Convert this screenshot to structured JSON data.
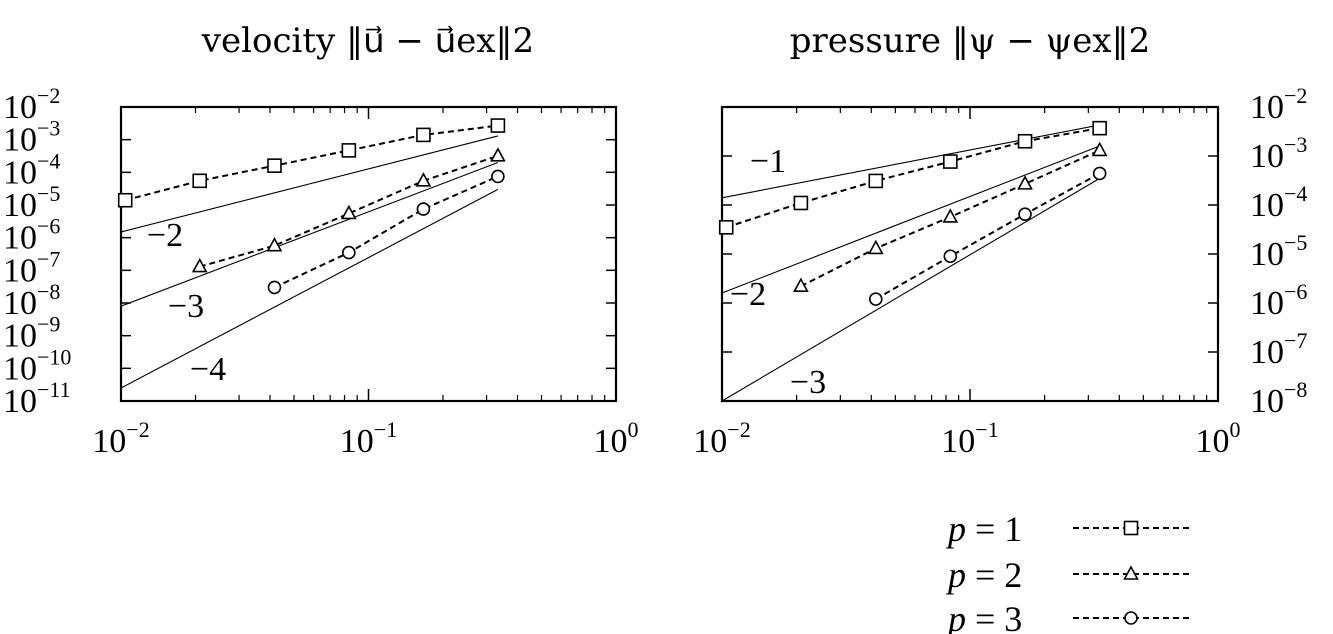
{
  "chart_data": [
    {
      "type": "line",
      "title": "velocity ‖u⃗ − u⃗ex‖2",
      "xscale": "log",
      "yscale": "log",
      "xlim": [
        0.01,
        1
      ],
      "ylim": [
        1e-11,
        0.01
      ],
      "x_ticks": [
        "10−2",
        "10−1",
        "100"
      ],
      "y_ticks": [
        "10−2",
        "10−3",
        "10−4",
        "10−5",
        "10−6",
        "10−7",
        "10−8",
        "10−9",
        "10−10",
        "10−11"
      ],
      "y_axis_side": "left",
      "series": [
        {
          "name": "p = 1",
          "marker": "square",
          "x": [
            0.0104,
            0.0208,
            0.0417,
            0.0833,
            0.1667,
            0.3333
          ],
          "y": [
            1.4e-05,
            5.5e-05,
            0.00016,
            0.00047,
            0.0014,
            0.0027
          ]
        },
        {
          "name": "p = 2",
          "marker": "triangle",
          "x": [
            0.0208,
            0.0417,
            0.0833,
            0.1667,
            0.3333
          ],
          "y": [
            1.3e-07,
            5.7e-07,
            5.5e-06,
            5.5e-05,
            0.00032
          ]
        },
        {
          "name": "p = 3",
          "marker": "circle",
          "x": [
            0.0417,
            0.0833,
            0.1667,
            0.3333
          ],
          "y": [
            3e-08,
            3.5e-07,
            7.5e-06,
            7.5e-05
          ]
        }
      ],
      "reference_lines": [
        {
          "label": "−2",
          "x": [
            0.01,
            0.3333
          ],
          "y": [
            1.5e-06,
            0.0013
          ]
        },
        {
          "label": "−3",
          "x": [
            0.01,
            0.3333
          ],
          "y": [
            8e-09,
            0.0002
          ]
        },
        {
          "label": "−4",
          "x": [
            0.01,
            0.3333
          ],
          "y": [
            2.5e-11,
            3e-05
          ]
        }
      ]
    },
    {
      "type": "line",
      "title": "pressure ‖ψ − ψex‖2",
      "xscale": "log",
      "yscale": "log",
      "xlim": [
        0.01,
        1
      ],
      "ylim": [
        1e-08,
        0.01
      ],
      "x_ticks": [
        "10−2",
        "10−1",
        "100"
      ],
      "y_ticks": [
        "10−2",
        "10−3",
        "10−4",
        "10−5",
        "10−6",
        "10−7",
        "10−8"
      ],
      "y_axis_side": "right",
      "series": [
        {
          "name": "p = 1",
          "marker": "square",
          "x": [
            0.0104,
            0.0208,
            0.0417,
            0.0833,
            0.1667,
            0.3333
          ],
          "y": [
            3.5e-05,
            0.00011,
            0.00031,
            0.00077,
            0.002,
            0.0037
          ]
        },
        {
          "name": "p = 2",
          "marker": "triangle",
          "x": [
            0.0208,
            0.0417,
            0.0833,
            0.1667,
            0.3333
          ],
          "y": [
            2.2e-06,
            1.3e-05,
            5.7e-05,
            0.00027,
            0.0013
          ]
        },
        {
          "name": "p = 3",
          "marker": "circle",
          "x": [
            0.0417,
            0.0833,
            0.1667,
            0.3333
          ],
          "y": [
            1.2e-06,
            9e-06,
            6.5e-05,
            0.00044
          ]
        }
      ],
      "reference_lines": [
        {
          "label": "−1",
          "x": [
            0.01,
            0.3333
          ],
          "y": [
            0.00014,
            0.0043
          ]
        },
        {
          "label": "−2",
          "x": [
            0.01,
            0.3333
          ],
          "y": [
            1.6e-06,
            0.0016
          ]
        },
        {
          "label": "−3",
          "x": [
            0.01,
            0.3333
          ],
          "y": [
            1e-08,
            0.00035
          ]
        }
      ]
    }
  ],
  "legend": {
    "placement": "bottom-right",
    "items": [
      {
        "symbol": "p",
        "value": "= 1",
        "marker": "square"
      },
      {
        "symbol": "p",
        "value": "= 2",
        "marker": "triangle"
      },
      {
        "symbol": "p",
        "value": "= 3",
        "marker": "circle"
      }
    ]
  }
}
